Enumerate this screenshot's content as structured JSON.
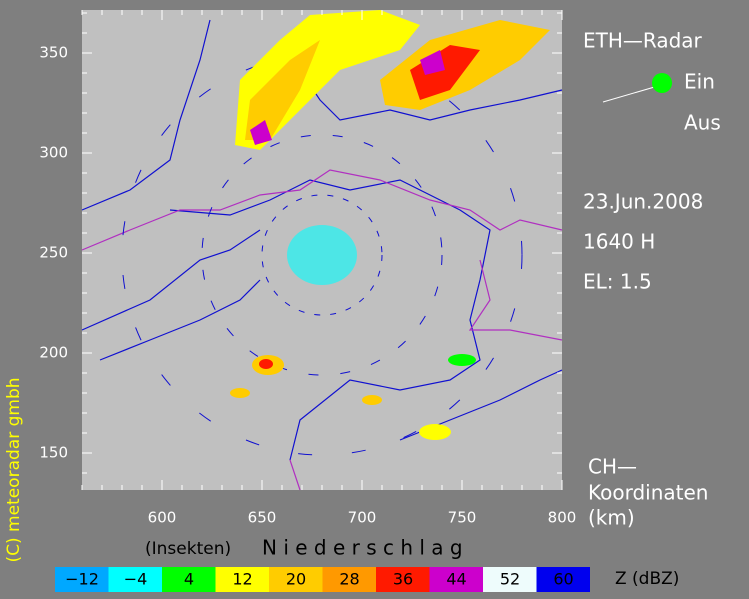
{
  "title": "ETH—Radar",
  "switch": {
    "on": "Ein",
    "off": "Aus"
  },
  "date": "23.Jun.2008",
  "time": "1640 H",
  "elevation": "EL: 1.5",
  "coordinates": [
    "CH—",
    "Koordinaten",
    "(km)"
  ],
  "copyright": "(C) meteoradar gmbh",
  "x_axis": {
    "lim": [
      560,
      800
    ],
    "ticks": [
      600,
      650,
      700,
      750,
      800
    ]
  },
  "y_axis": {
    "lim": [
      131.5,
      371.5
    ],
    "ticks": [
      150,
      200,
      250,
      300,
      350
    ]
  },
  "legend": {
    "left_label": "(Insekten)",
    "right_label": "N i e d e r s c h l a g",
    "unit": "Z  (dBZ)",
    "items": [
      {
        "label": "−12",
        "color": "#00a8ff"
      },
      {
        "label": "−4",
        "color": "#00ffff"
      },
      {
        "label": "4",
        "color": "#00ff00"
      },
      {
        "label": "12",
        "color": "#ffff00"
      },
      {
        "label": "20",
        "color": "#ffcc00"
      },
      {
        "label": "28",
        "color": "#ff9900"
      },
      {
        "label": "36",
        "color": "#ff1a00"
      },
      {
        "label": "44",
        "color": "#cc00cc"
      },
      {
        "label": "52",
        "color": "#eefcfc"
      },
      {
        "label": "60",
        "color": "#0000ee"
      }
    ]
  }
}
